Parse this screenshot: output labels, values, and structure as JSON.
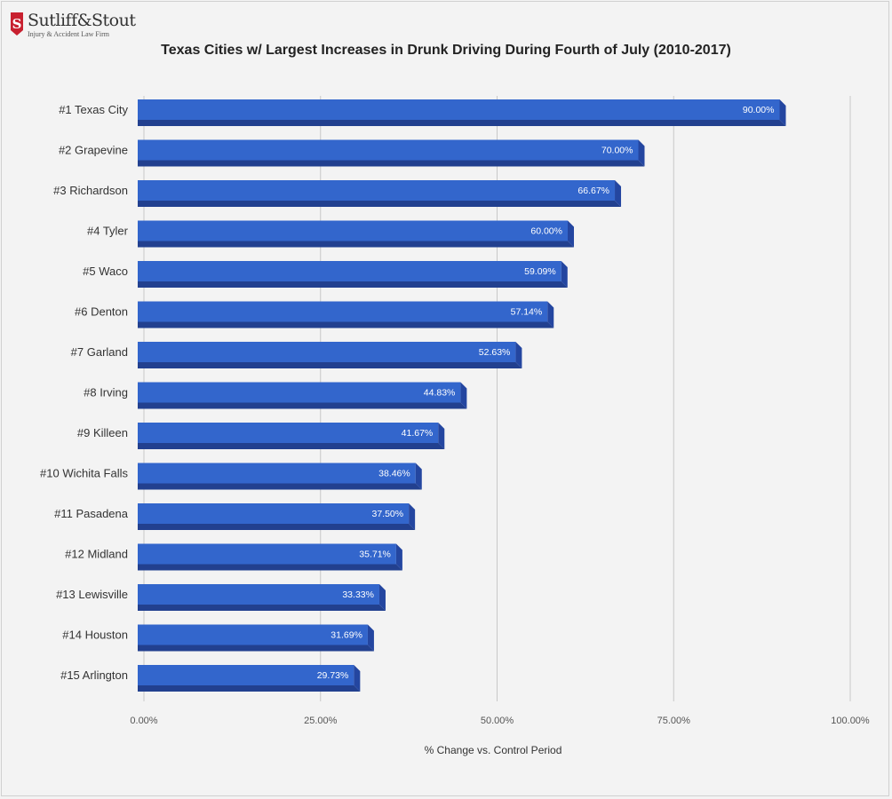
{
  "logo": {
    "name": "Sutliff&Stout",
    "tagline": "Injury & Accident Law Firm",
    "icon": "firm-s-logo-icon",
    "color": "#c8202f"
  },
  "colors": {
    "bar_front": "#3366cc",
    "bar_top": "#2b56ad",
    "bar_side": "#2446a0",
    "bar_bottom": "#22408f",
    "grid": "#c8c8c8",
    "background": "#f3f3f3"
  },
  "chart_data": {
    "type": "bar",
    "orientation": "horizontal",
    "title": "Texas Cities w/ Largest Increases in Drunk Driving During Fourth of July (2010-2017)",
    "xlabel": "% Change vs. Control Period",
    "ylabel": "",
    "xlim": [
      0,
      100
    ],
    "x_ticks": [
      0,
      25,
      50,
      75,
      100
    ],
    "x_tick_labels": [
      "0.00%",
      "25.00%",
      "50.00%",
      "75.00%",
      "100.00%"
    ],
    "grid": true,
    "categories": [
      "#1 Texas City",
      "#2 Grapevine",
      "#3 Richardson",
      "#4 Tyler",
      "#5 Waco",
      "#6 Denton",
      "#7 Garland",
      "#8 Irving",
      "#9 Killeen",
      "#10 Wichita Falls",
      "#11 Pasadena",
      "#12 Midland",
      "#13 Lewisville",
      "#14 Houston",
      "#15 Arlington"
    ],
    "values": [
      90.0,
      70.0,
      66.67,
      60.0,
      59.09,
      57.14,
      52.63,
      44.83,
      41.67,
      38.46,
      37.5,
      35.71,
      33.33,
      31.69,
      29.73
    ],
    "value_labels": [
      "90.00%",
      "70.00%",
      "66.67%",
      "60.00%",
      "59.09%",
      "57.14%",
      "52.63%",
      "44.83%",
      "41.67%",
      "38.46%",
      "37.50%",
      "35.71%",
      "33.33%",
      "31.69%",
      "29.73%"
    ]
  }
}
